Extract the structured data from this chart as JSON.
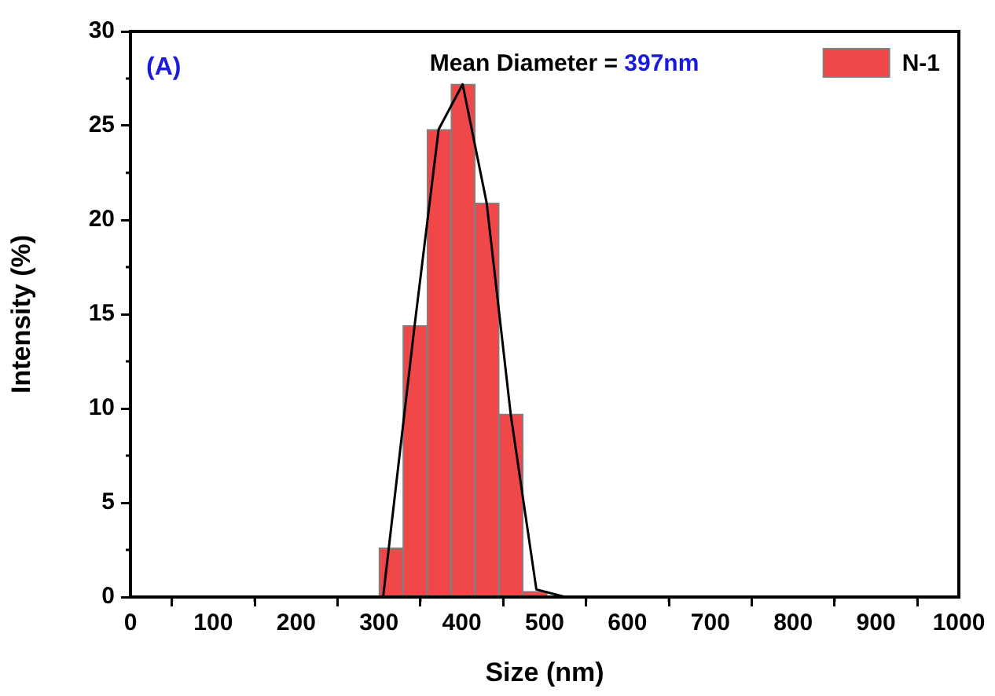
{
  "chart_data": {
    "type": "histogram",
    "xlabel": "Size (nm)",
    "ylabel": "Intensity (%)",
    "bins": [
      300,
      329,
      358,
      387,
      416,
      445,
      474,
      503
    ],
    "series": [
      {
        "name": "N-1",
        "color": "#f04848",
        "values": [
          2.6,
          14.4,
          24.8,
          27.2,
          20.9,
          9.7,
          0.3
        ]
      },
      {
        "type": "line",
        "color": "#000000",
        "x": [
          305,
          343,
          372,
          401,
          430,
          459,
          490,
          525
        ],
        "values": [
          0,
          14.4,
          24.8,
          27.2,
          20.9,
          9.7,
          0.4,
          0
        ]
      }
    ],
    "annotations": [
      "(A)",
      "Mean Diameter = 397nm"
    ],
    "xlim": [
      0,
      1000
    ],
    "xticks": [
      0,
      100,
      200,
      300,
      400,
      500,
      600,
      700,
      800,
      900,
      1000
    ],
    "ylim": [
      0,
      30
    ],
    "yticks": [
      0,
      5,
      10,
      15,
      20,
      25,
      30
    ],
    "legend": "top right",
    "grid": false,
    "marker": "none"
  }
}
